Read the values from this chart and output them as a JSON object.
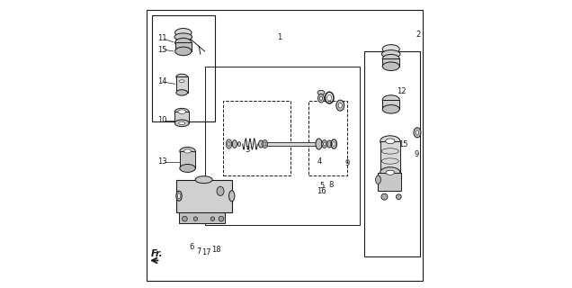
{
  "bg_color": "#ffffff",
  "line_color": "#1a1a1a"
}
